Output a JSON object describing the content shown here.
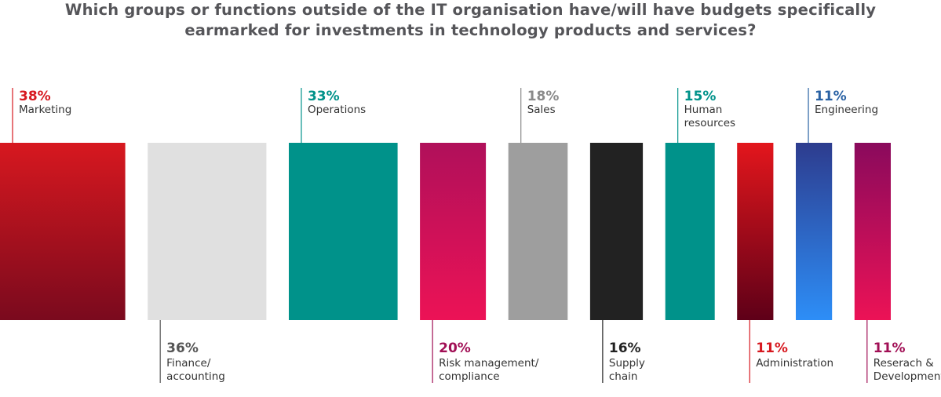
{
  "chart_data": {
    "type": "bar",
    "title": "Which groups or functions outside of the IT organisation have/will have budgets specifically earmarked for investments in technology products and services?",
    "title_lines": [
      "Which groups or functions outside of the IT organisation have/will have budgets specifically",
      "earmarked for investments in technology products and services?"
    ],
    "unit": "%",
    "ylim": [
      0,
      40
    ],
    "categories": [
      "Marketing",
      "Finance/ accounting",
      "Operations",
      "Risk management/ compliance",
      "Sales",
      "Supply chain",
      "Human resources",
      "Administration",
      "Engineering",
      "Reserach & Development"
    ],
    "values": [
      38,
      36,
      33,
      20,
      18,
      16,
      15,
      11,
      11,
      11
    ],
    "bars": [
      {
        "value_label": "38%",
        "name_lines": [
          "Marketing"
        ],
        "label_position": "top",
        "label_color": "#d71920",
        "bar_top": "#d7181f",
        "bar_bottom": "#7a0a1e"
      },
      {
        "value_label": "36%",
        "name_lines": [
          "Finance/",
          "accounting"
        ],
        "label_position": "bottom",
        "label_color": "#555555",
        "bar_top": "#e0e0e0",
        "bar_bottom": "#e0e0e0"
      },
      {
        "value_label": "33%",
        "name_lines": [
          "Operations"
        ],
        "label_position": "top",
        "label_color": "#00928a",
        "bar_top": "#00928a",
        "bar_bottom": "#00928a"
      },
      {
        "value_label": "20%",
        "name_lines": [
          "Risk management/",
          "compliance"
        ],
        "label_position": "bottom",
        "label_color": "#a10f55",
        "bar_top": "#b0105a",
        "bar_bottom": "#ec1256"
      },
      {
        "value_label": "18%",
        "name_lines": [
          "Sales"
        ],
        "label_position": "top",
        "label_color": "#8a8a8a",
        "bar_top": "#9e9e9e",
        "bar_bottom": "#9e9e9e"
      },
      {
        "value_label": "16%",
        "name_lines": [
          "Supply",
          "chain"
        ],
        "label_position": "bottom",
        "label_color": "#222222",
        "bar_top": "#222222",
        "bar_bottom": "#222222"
      },
      {
        "value_label": "15%",
        "name_lines": [
          "Human",
          "resources"
        ],
        "label_position": "top",
        "label_color": "#00928a",
        "bar_top": "#00928a",
        "bar_bottom": "#00928a"
      },
      {
        "value_label": "11%",
        "name_lines": [
          "Administration"
        ],
        "label_position": "bottom",
        "label_color": "#d71920",
        "bar_top": "#e3161c",
        "bar_bottom": "#5e0018"
      },
      {
        "value_label": "11%",
        "name_lines": [
          "Engineering"
        ],
        "label_position": "top",
        "label_color": "#2a62a4",
        "bar_top": "#2d3c8e",
        "bar_bottom": "#2d8ef7"
      },
      {
        "value_label": "11%",
        "name_lines": [
          "Reserach &",
          "Development"
        ],
        "label_position": "bottom",
        "label_color": "#a10f55",
        "bar_top": "#8a0a5c",
        "bar_bottom": "#ec1256"
      }
    ]
  }
}
